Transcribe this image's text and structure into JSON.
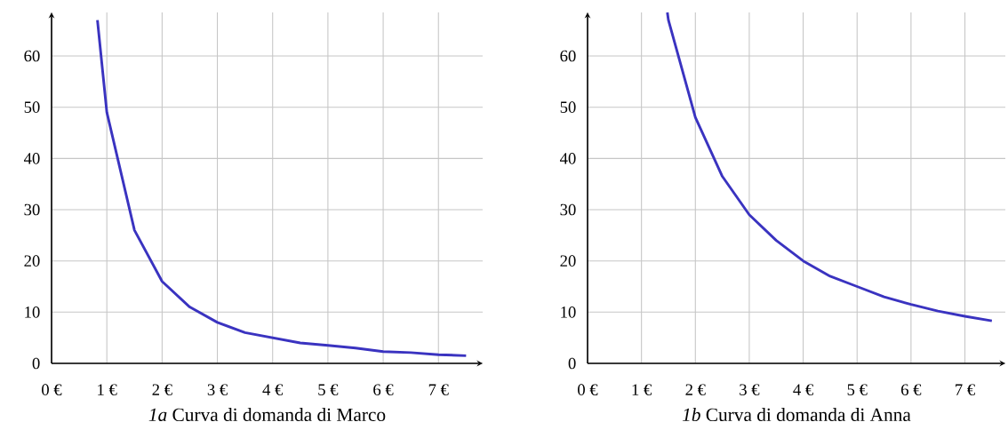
{
  "chart_data": [
    {
      "type": "line",
      "title": "*1a* Curva di domanda di Marco",
      "x": [
        0.83,
        1,
        1.5,
        2,
        2.5,
        3,
        3.5,
        4,
        4.5,
        5,
        5.5,
        6,
        6.5,
        7,
        7.5
      ],
      "series": [
        {
          "color": "#3a33c0",
          "values": [
            67,
            49,
            26,
            16,
            11,
            8,
            6,
            5,
            4,
            3.5,
            3,
            2.3,
            2.1,
            1.7,
            1.5
          ]
        }
      ],
      "xlim": [
        0,
        7.8
      ],
      "ylim": [
        0,
        68.5
      ],
      "xticks": [
        {
          "value": 0,
          "label": "0 €"
        },
        {
          "value": 1,
          "label": "1 €"
        },
        {
          "value": 2,
          "label": "2 €"
        },
        {
          "value": 3,
          "label": "3 €"
        },
        {
          "value": 4,
          "label": "4 €"
        },
        {
          "value": 5,
          "label": "5 €"
        },
        {
          "value": 6,
          "label": "6 €"
        },
        {
          "value": 7,
          "label": "7 €"
        }
      ],
      "yticks": [
        0,
        10,
        20,
        30,
        40,
        50,
        60
      ],
      "grid": true
    },
    {
      "type": "line",
      "title": "*1b* Curva di domanda di Anna",
      "x": [
        1.48,
        1.5,
        2,
        2.5,
        3,
        3.5,
        4,
        4.5,
        5,
        5.5,
        6,
        6.5,
        7,
        7.5
      ],
      "series": [
        {
          "color": "#3a33c0",
          "values": [
            68.5,
            67,
            48,
            36.5,
            29,
            24,
            20,
            17,
            15,
            13,
            11.5,
            10.2,
            9.2,
            8.3
          ]
        }
      ],
      "xlim": [
        0,
        7.75
      ],
      "ylim": [
        0,
        68.5
      ],
      "xticks": [
        {
          "value": 0,
          "label": "0 €"
        },
        {
          "value": 1,
          "label": "1 €"
        },
        {
          "value": 2,
          "label": "2 €"
        },
        {
          "value": 3,
          "label": "3 €"
        },
        {
          "value": 4,
          "label": "4 €"
        },
        {
          "value": 5,
          "label": "5 €"
        },
        {
          "value": 6,
          "label": "6 €"
        },
        {
          "value": 7,
          "label": "7 €"
        }
      ],
      "yticks": [
        0,
        10,
        20,
        30,
        40,
        50,
        60
      ],
      "grid": true
    }
  ]
}
